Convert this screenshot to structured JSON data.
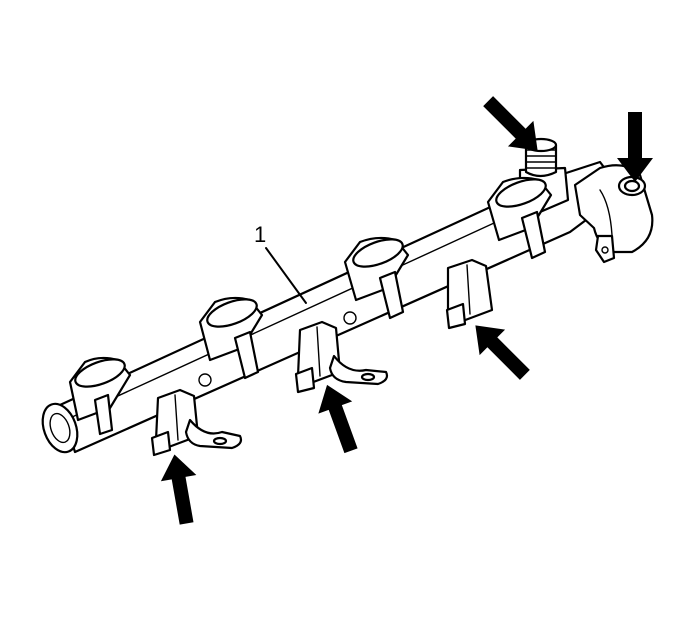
{
  "diagram": {
    "callout_label": "1",
    "arrow_icon": "solid-black-arrow",
    "colors": {
      "ink": "#000000",
      "paper": "#ffffff"
    }
  }
}
